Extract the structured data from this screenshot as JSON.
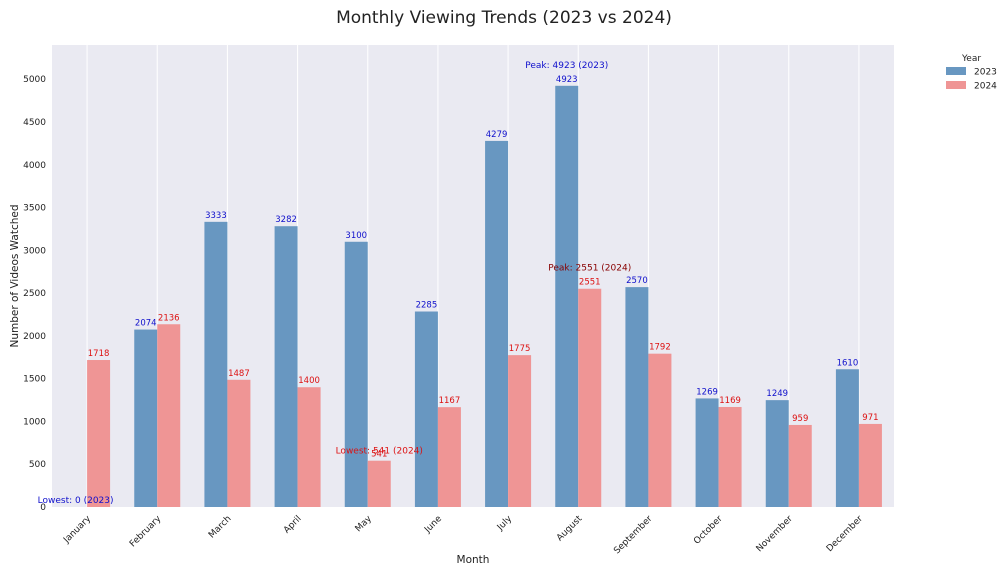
{
  "chart_data": {
    "type": "bar",
    "title": "Monthly Viewing Trends (2023 vs 2024)",
    "xlabel": "Month",
    "ylabel": "Number of Videos Watched",
    "categories": [
      "January",
      "February",
      "March",
      "April",
      "May",
      "June",
      "July",
      "August",
      "September",
      "October",
      "November",
      "December"
    ],
    "series": [
      {
        "name": "2023",
        "color": "#6897c1",
        "label_color": "#1010cc",
        "values": [
          0,
          2074,
          3333,
          3282,
          3100,
          2285,
          4279,
          4923,
          2570,
          1269,
          1249,
          1610
        ]
      },
      {
        "name": "2024",
        "color": "#ef9595",
        "label_color": "#dd1111",
        "values": [
          1718,
          2136,
          1487,
          1400,
          541,
          1167,
          1775,
          2551,
          1792,
          1169,
          959,
          971
        ]
      }
    ],
    "ylim": [
      0,
      5400
    ],
    "yticks": [
      0,
      500,
      1000,
      1500,
      2000,
      2500,
      3000,
      3500,
      4000,
      4500,
      5000
    ],
    "grid": true,
    "legend": {
      "title": "Year",
      "placement": "outside-right"
    },
    "annotations": [
      {
        "text": "Peak: 4923 (2023)",
        "series": 0,
        "category": 7,
        "color": "#1010cc"
      },
      {
        "text": "Peak: 2551 (2024)",
        "series": 1,
        "category": 7,
        "color": "#880000"
      },
      {
        "text": "Lowest: 0 (2023)",
        "series": 0,
        "category": 0,
        "color": "#1010cc"
      },
      {
        "text": "Lowest: 541 (2024)",
        "series": 1,
        "category": 4,
        "color": "#dd1111"
      }
    ]
  }
}
